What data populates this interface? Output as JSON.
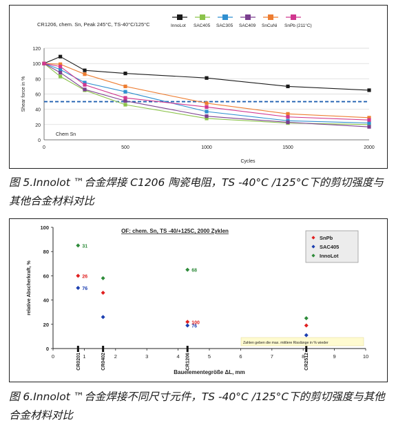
{
  "chart_data": [
    {
      "type": "line",
      "title": "CR1206, chem. Sn, Peak 245°C, TS-40°C/125°C",
      "ylabel": "Shear force in %",
      "xlabel": "Cycles",
      "annotation": "Chem Sn",
      "x": [
        0,
        100,
        250,
        500,
        1000,
        1500,
        2000
      ],
      "xticks": [
        0,
        500,
        1000,
        1500,
        2000
      ],
      "yticks": [
        0,
        20,
        40,
        60,
        80,
        100,
        120
      ],
      "ylim": [
        0,
        120
      ],
      "xlim": [
        0,
        2000
      ],
      "reference_line": 50,
      "reference_color": "#1f5fb0",
      "grid": "horizontal",
      "legend_position": "top",
      "series": [
        {
          "name": "InnoLot",
          "color": "#1a1a1a",
          "values": [
            100,
            109,
            91,
            87,
            81,
            70,
            65
          ]
        },
        {
          "name": "SAC405",
          "color": "#8bc34a",
          "values": [
            100,
            83,
            65,
            46,
            28,
            22,
            20
          ]
        },
        {
          "name": "SAC305",
          "color": "#2f8fd0",
          "values": [
            100,
            92,
            75,
            63,
            37,
            25,
            22
          ]
        },
        {
          "name": "SAC409",
          "color": "#7b3f8f",
          "values": [
            100,
            88,
            66,
            51,
            31,
            23,
            17
          ]
        },
        {
          "name": "SnCuNi",
          "color": "#ed7d31",
          "values": [
            100,
            99,
            86,
            70,
            48,
            34,
            29
          ]
        },
        {
          "name": "SnPb (211°C)",
          "color": "#d0378f",
          "values": [
            100,
            96,
            72,
            55,
            43,
            30,
            26
          ]
        }
      ]
    },
    {
      "type": "scatter",
      "title": "OF: chem. Sn, TS -40/+125C, 2000 Zyklen",
      "ylabel": "relative Abscherkraft, %",
      "xlabel": "Bauelementegröße ΔL, mm",
      "note": "Zahlen geben die max. mittlere Risslänge in % wieder",
      "xlim": [
        0,
        10
      ],
      "ylim": [
        0,
        100
      ],
      "xticks": [
        "0",
        "1",
        "2",
        "3",
        "4",
        "5",
        "6",
        "7",
        "8",
        "9",
        "10"
      ],
      "yticks": [
        "0",
        "20",
        "40",
        "60",
        "80",
        "100"
      ],
      "legend_position": "top-right",
      "components": [
        {
          "name": "CR0201",
          "x": 0.8
        },
        {
          "name": "CR0402",
          "x": 1.6
        },
        {
          "name": "CR1206",
          "x": 4.3
        },
        {
          "name": "CR2512",
          "x": 8.1
        }
      ],
      "series": [
        {
          "name": "SnPb",
          "color": "#e02020",
          "points": [
            {
              "x": 0.8,
              "y": 60,
              "label": "26"
            },
            {
              "x": 1.6,
              "y": 46,
              "label": ""
            },
            {
              "x": 4.3,
              "y": 22,
              "label": "100"
            },
            {
              "x": 8.1,
              "y": 19,
              "label": ""
            }
          ]
        },
        {
          "name": "SAC405",
          "color": "#1c3fb0",
          "points": [
            {
              "x": 0.8,
              "y": 50,
              "label": "76"
            },
            {
              "x": 1.6,
              "y": 26,
              "label": ""
            },
            {
              "x": 4.3,
              "y": 19,
              "label": "76"
            },
            {
              "x": 8.1,
              "y": 11,
              "label": ""
            }
          ]
        },
        {
          "name": "InnoLot",
          "color": "#2e8b3a",
          "points": [
            {
              "x": 0.8,
              "y": 85,
              "label": "31"
            },
            {
              "x": 1.6,
              "y": 58,
              "label": ""
            },
            {
              "x": 4.3,
              "y": 65,
              "label": "68"
            },
            {
              "x": 8.1,
              "y": 25,
              "label": ""
            }
          ]
        }
      ]
    }
  ],
  "captions": {
    "fig5": "图 5.Innolot ™合金焊接 C1206 陶瓷电阻，TS -40°C /125°C下的剪切强度与其他合金材料对比",
    "fig6": "图 6.Innolot ™合金焊接不同尺寸元件，TS -40°C /125°C下的剪切强度与其他合金材料对比"
  }
}
